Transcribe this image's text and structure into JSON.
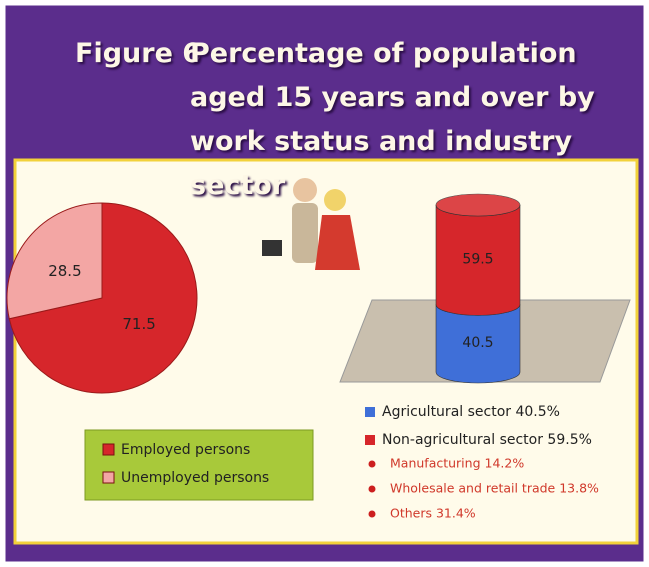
{
  "title": {
    "figure": "Figure 6",
    "text": "Percentage of population aged 15 years and over by work status and industry sector"
  },
  "chart_data": [
    {
      "type": "pie",
      "categories": [
        "Employed persons",
        "Unemployed persons"
      ],
      "values": [
        71.5,
        28.5
      ],
      "colors": [
        "#d6262b",
        "#f3a6a4"
      ]
    },
    {
      "type": "stacked_cylinder",
      "ylim": [
        0,
        100
      ],
      "series": [
        {
          "name": "Agricultural sector 40.5%",
          "color": "#3f6fd8",
          "values": [
            40.5
          ]
        },
        {
          "name": "Non-agricultural sector 59.5%",
          "color": "#d6262b",
          "values": [
            59.5
          ],
          "breakdown": [
            "Manufacturing 14.2%",
            "Wholesale and retail trade 13.8%",
            "Others 31.4%"
          ]
        }
      ]
    }
  ]
}
